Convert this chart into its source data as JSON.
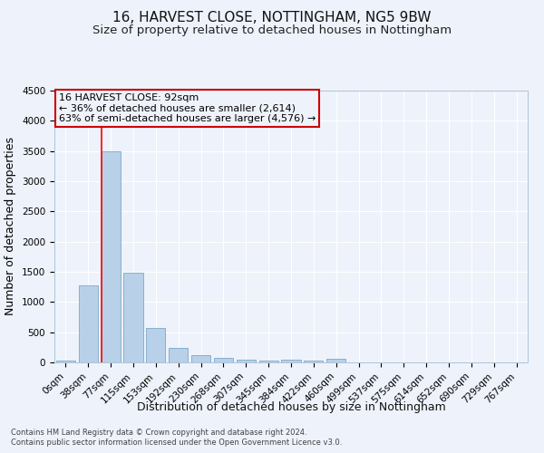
{
  "title": "16, HARVEST CLOSE, NOTTINGHAM, NG5 9BW",
  "subtitle": "Size of property relative to detached houses in Nottingham",
  "xlabel": "Distribution of detached houses by size in Nottingham",
  "ylabel": "Number of detached properties",
  "footnote1": "Contains HM Land Registry data © Crown copyright and database right 2024.",
  "footnote2": "Contains public sector information licensed under the Open Government Licence v3.0.",
  "categories": [
    "0sqm",
    "38sqm",
    "77sqm",
    "115sqm",
    "153sqm",
    "192sqm",
    "230sqm",
    "268sqm",
    "307sqm",
    "345sqm",
    "384sqm",
    "422sqm",
    "460sqm",
    "499sqm",
    "537sqm",
    "575sqm",
    "614sqm",
    "652sqm",
    "690sqm",
    "729sqm",
    "767sqm"
  ],
  "values": [
    30,
    1280,
    3500,
    1480,
    570,
    245,
    120,
    80,
    50,
    30,
    40,
    25,
    55,
    0,
    0,
    0,
    0,
    0,
    0,
    0,
    0
  ],
  "bar_color": "#b8d0e8",
  "bar_edge_color": "#7aaac8",
  "annotation_text1": "16 HARVEST CLOSE: 92sqm",
  "annotation_text2": "← 36% of detached houses are smaller (2,614)",
  "annotation_text3": "63% of semi-detached houses are larger (4,576) →",
  "annotation_box_color": "#cc0000",
  "ylim": [
    0,
    4500
  ],
  "yticks": [
    0,
    500,
    1000,
    1500,
    2000,
    2500,
    3000,
    3500,
    4000,
    4500
  ],
  "background_color": "#eef2fb",
  "grid_color": "#ffffff",
  "title_fontsize": 11,
  "subtitle_fontsize": 9.5,
  "axis_label_fontsize": 9,
  "tick_fontsize": 7.5,
  "footnote_fontsize": 6
}
